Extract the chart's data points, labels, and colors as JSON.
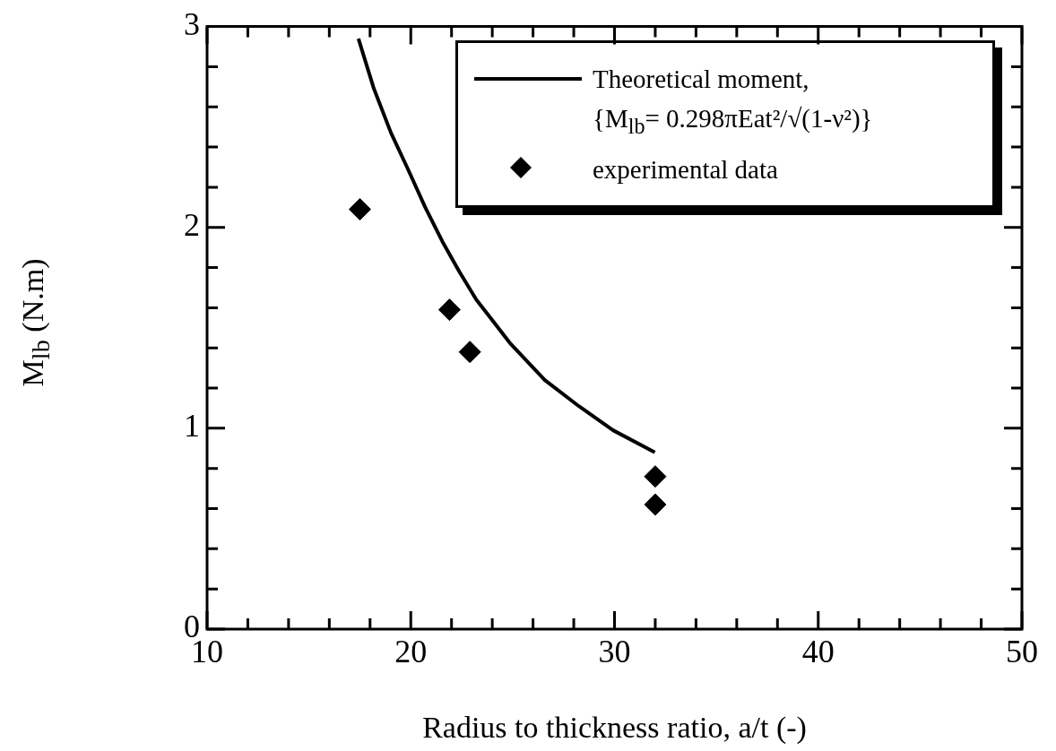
{
  "chart_data": {
    "type": "scatter",
    "xlabel": "Radius to thickness ratio, a/t (-)",
    "ylabel": "M$_{lb}$  (N.m)",
    "xlim": [
      10,
      50
    ],
    "ylim": [
      0,
      3
    ],
    "xticks": [
      10,
      {
        "value": 12,
        "label": null
      },
      {
        "value": 14,
        "label": null
      },
      {
        "value": 16,
        "label": null
      },
      {
        "value": 18,
        "label": null
      },
      20,
      {
        "value": 22,
        "label": null
      },
      {
        "value": 24,
        "label": null
      },
      {
        "value": 26,
        "label": null
      },
      {
        "value": 28,
        "label": null
      },
      30,
      {
        "value": 32,
        "label": null
      },
      {
        "value": 34,
        "label": null
      },
      {
        "value": 36,
        "label": null
      },
      {
        "value": 38,
        "label": null
      },
      40,
      {
        "value": 42,
        "label": null
      },
      {
        "value": 44,
        "label": null
      },
      {
        "value": 46,
        "label": null
      },
      {
        "value": 48,
        "label": null
      },
      50
    ],
    "yticks": [
      0,
      {
        "value": 0.2,
        "label": null
      },
      {
        "value": 0.4,
        "label": null
      },
      {
        "value": 0.6,
        "label": null
      },
      {
        "value": 0.8,
        "label": null
      },
      1,
      {
        "value": 1.2,
        "label": null
      },
      {
        "value": 1.4,
        "label": null
      },
      {
        "value": 1.6,
        "label": null
      },
      {
        "value": 1.8,
        "label": null
      },
      2,
      {
        "value": 2.2,
        "label": null
      },
      {
        "value": 2.4,
        "label": null
      },
      {
        "value": 2.6,
        "label": null
      },
      {
        "value": 2.8,
        "label": null
      },
      3
    ],
    "grid": false,
    "legend": "top right",
    "marker": "diamond",
    "series": [
      {
        "type": "line",
        "marker": "none",
        "line_style": "solid",
        "name": "Theoretical moment, {M$_{lb}$= 0.298πEat²/√(1-ν²)}",
        "color": "#000000",
        "x": [
          17.43,
          18.19,
          19.03,
          19.86,
          20.71,
          21.55,
          22.38,
          23.22,
          24.06,
          24.9,
          26.58,
          28.25,
          29.93,
          31.98
        ],
        "values": [
          2.94,
          2.69,
          2.47,
          2.29,
          2.1,
          1.93,
          1.78,
          1.64,
          1.53,
          1.42,
          1.24,
          1.11,
          0.99,
          0.88
        ]
      },
      {
        "name": "experimental data",
        "color": "#000000",
        "x": [
          17.5,
          21.9,
          22.9,
          32,
          32
        ],
        "values": [
          2.09,
          1.59,
          1.38,
          0.76,
          0.62
        ]
      }
    ]
  }
}
